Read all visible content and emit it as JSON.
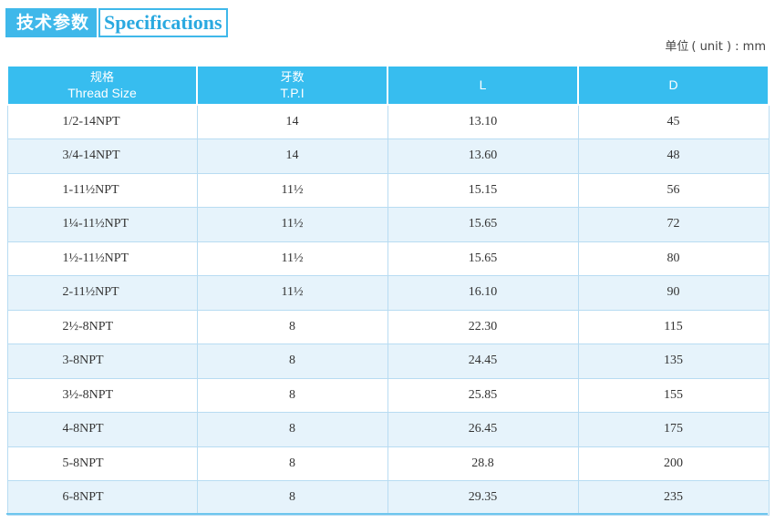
{
  "title": {
    "cn": "技术参数",
    "en": "Specifications"
  },
  "unit": {
    "label": "单位",
    "value": "( unit ) : mm"
  },
  "headers": [
    {
      "cn": "规格",
      "en": "Thread Size"
    },
    {
      "cn": "牙数",
      "en": "T.P.I"
    },
    {
      "cn": "",
      "en": "L"
    },
    {
      "cn": "",
      "en": "D"
    }
  ],
  "rows": [
    {
      "size": "1/2-14NPT",
      "tpi": "14",
      "l": "13.10",
      "d": "45"
    },
    {
      "size": "3/4-14NPT",
      "tpi": "14",
      "l": "13.60",
      "d": "48"
    },
    {
      "size": "1-11½NPT",
      "tpi": "11½",
      "l": "15.15",
      "d": "56"
    },
    {
      "size": "1¼-11½NPT",
      "tpi": "11½",
      "l": "15.65",
      "d": "72"
    },
    {
      "size": "1½-11½NPT",
      "tpi": "11½",
      "l": "15.65",
      "d": "80"
    },
    {
      "size": "2-11½NPT",
      "tpi": "11½",
      "l": "16.10",
      "d": "90"
    },
    {
      "size": "2½-8NPT",
      "tpi": "8",
      "l": "22.30",
      "d": "115"
    },
    {
      "size": "3-8NPT",
      "tpi": "8",
      "l": "24.45",
      "d": "135"
    },
    {
      "size": "3½-8NPT",
      "tpi": "8",
      "l": "25.85",
      "d": "155"
    },
    {
      "size": "4-8NPT",
      "tpi": "8",
      "l": "26.45",
      "d": "175"
    },
    {
      "size": "5-8NPT",
      "tpi": "8",
      "l": "28.8",
      "d": "200"
    },
    {
      "size": "6-8NPT",
      "tpi": "8",
      "l": "29.35",
      "d": "235"
    }
  ],
  "colors": {
    "accent": "#3fb8ea",
    "header_bg": "#37bdef",
    "stripe": "#e6f3fb"
  }
}
